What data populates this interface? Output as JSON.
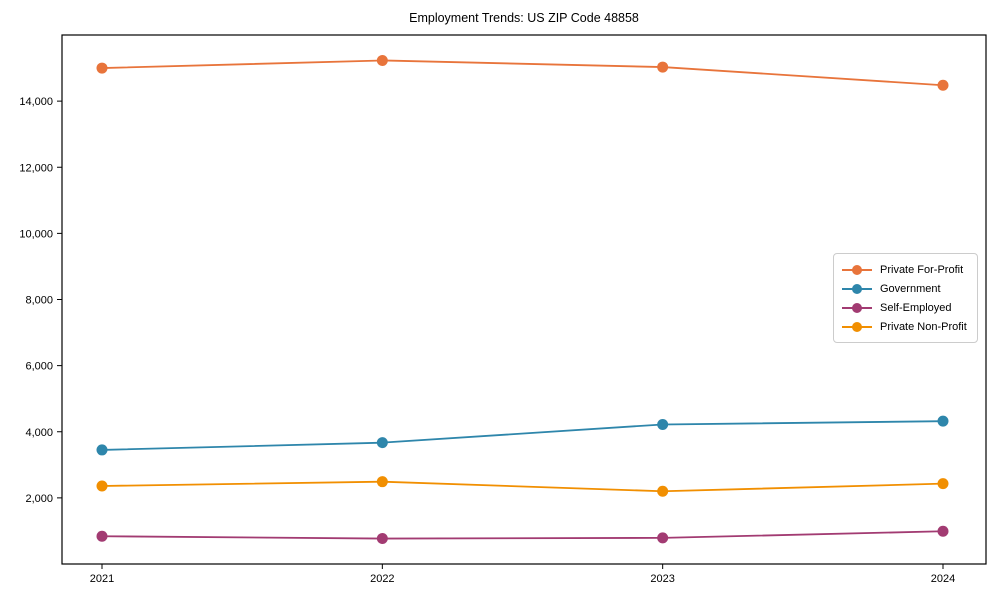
{
  "chart_data": {
    "type": "line",
    "title": "Employment Trends: US ZIP Code 48858",
    "categories": [
      "2021",
      "2022",
      "2023",
      "2024"
    ],
    "series": [
      {
        "name": "Private For-Profit",
        "color": "#E8743B",
        "values": [
          15000,
          15230,
          15030,
          14480
        ]
      },
      {
        "name": "Government",
        "color": "#2E86AB",
        "values": [
          3450,
          3670,
          4220,
          4320
        ]
      },
      {
        "name": "Self-Employed",
        "color": "#A23B72",
        "values": [
          840,
          770,
          790,
          990
        ]
      },
      {
        "name": "Private Non-Profit",
        "color": "#F18F01",
        "values": [
          2360,
          2490,
          2200,
          2430
        ]
      }
    ],
    "xlabel": "",
    "ylabel": "",
    "ylim": [
      0,
      16000
    ],
    "yticks": {
      "values": [
        2000,
        4000,
        6000,
        8000,
        10000,
        12000,
        14000
      ],
      "labels": [
        "2,000",
        "4,000",
        "6,000",
        "8,000",
        "10,000",
        "12,000",
        "14,000"
      ]
    },
    "grid": false,
    "legend_position": "center right",
    "marker": "circle"
  }
}
